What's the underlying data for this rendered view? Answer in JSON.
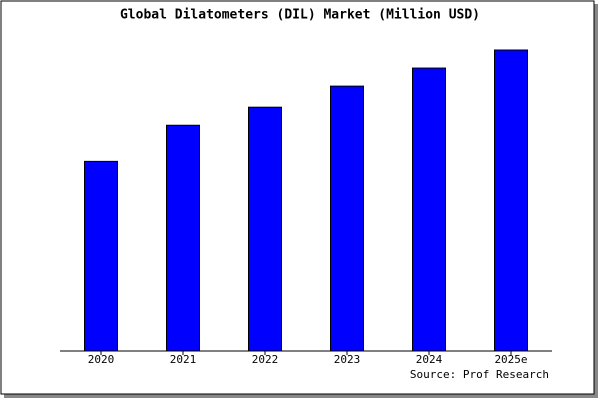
{
  "chart_data": {
    "type": "bar",
    "title": "Global Dilatometers (DIL) Market (Million USD)",
    "categories": [
      "2020",
      "2021",
      "2022",
      "2023",
      "2024",
      "2025e"
    ],
    "values": [
      63,
      75,
      81,
      88,
      94,
      100
    ],
    "color": "#0000ff",
    "source": "Source: Prof Research"
  }
}
